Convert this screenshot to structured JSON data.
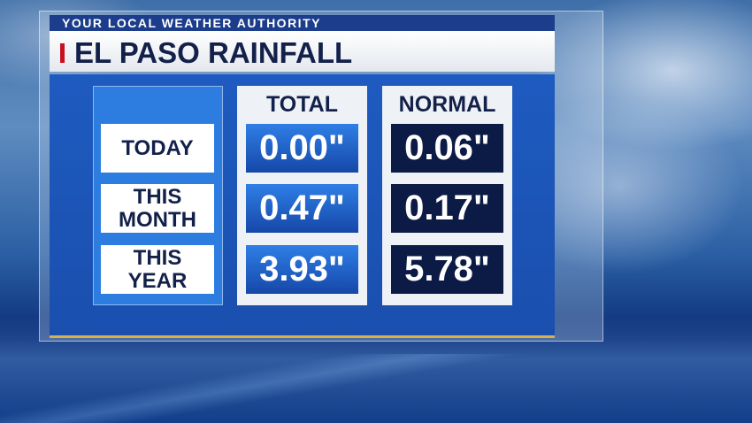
{
  "header": {
    "tagline": "YOUR LOCAL WEATHER AUTHORITY",
    "title": "EL PASO RAINFALL"
  },
  "table": {
    "columns": [
      "TOTAL",
      "NORMAL"
    ],
    "rows": [
      {
        "label": "TODAY",
        "values": [
          "0.00\"",
          "0.06\""
        ]
      },
      {
        "label": "THIS MONTH",
        "values": [
          "0.47\"",
          "0.17\""
        ]
      },
      {
        "label": "THIS YEAR",
        "values": [
          "3.93\"",
          "5.78\""
        ]
      }
    ]
  }
}
